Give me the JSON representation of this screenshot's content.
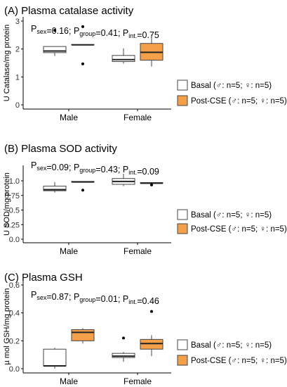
{
  "chart_data": [
    {
      "type": "boxplot",
      "title": "(A) Plasma catalase activity",
      "ylabel": "U Catalase/mg protein",
      "ylim": [
        0,
        3
      ],
      "yticks": [
        0,
        1,
        2,
        3
      ],
      "categories": [
        "Male",
        "Female"
      ],
      "stats": {
        "p_sex": "0.16",
        "p_group": "0.41",
        "p_int": "0.75"
      },
      "series": [
        {
          "name": "Basal",
          "color": "#ffffff",
          "boxes": [
            {
              "category": "Male",
              "whisker_low": 1.75,
              "q1": 1.87,
              "median": 1.93,
              "q3": 2.09,
              "whisker_high": 2.1,
              "outliers": [
                2.67
              ]
            },
            {
              "category": "Female",
              "whisker_low": 1.48,
              "q1": 1.55,
              "median": 1.62,
              "q3": 1.77,
              "whisker_high": 2.02,
              "outliers": []
            }
          ]
        },
        {
          "name": "Post-CSE",
          "color": "#f4a04a",
          "boxes": [
            {
              "category": "Male",
              "whisker_low": 2.15,
              "q1": 2.15,
              "median": 2.15,
              "q3": 2.16,
              "whisker_high": 2.16,
              "outliers": [
                2.8,
                1.47
              ]
            },
            {
              "category": "Female",
              "whisker_low": 1.37,
              "q1": 1.6,
              "median": 1.88,
              "q3": 2.2,
              "whisker_high": 2.52,
              "outliers": []
            }
          ]
        }
      ]
    },
    {
      "type": "boxplot",
      "title": "(B) Plasma SOD activity",
      "ylabel": "U SOD/mg protein",
      "ylim": [
        0,
        1.25
      ],
      "yticks": [
        0.0,
        0.25,
        0.5,
        0.75,
        1.0
      ],
      "categories": [
        "Male",
        "Female"
      ],
      "stats": {
        "p_sex": "0.09",
        "p_group": "0.43",
        "p_int": "0.09"
      },
      "series": [
        {
          "name": "Basal",
          "color": "#ffffff",
          "boxes": [
            {
              "category": "Male",
              "whisker_low": 0.8,
              "q1": 0.83,
              "median": 0.85,
              "q3": 0.91,
              "whisker_high": 0.98,
              "outliers": []
            },
            {
              "category": "Female",
              "whisker_low": 0.91,
              "q1": 0.94,
              "median": 0.99,
              "q3": 1.04,
              "whisker_high": 1.12,
              "outliers": []
            }
          ]
        },
        {
          "name": "Post-CSE",
          "color": "#f4a04a",
          "boxes": [
            {
              "category": "Male",
              "whisker_low": 0.98,
              "q1": 0.98,
              "median": 0.98,
              "q3": 0.99,
              "whisker_high": 0.99,
              "outliers": [
                0.84
              ]
            },
            {
              "category": "Female",
              "whisker_low": 0.96,
              "q1": 0.96,
              "median": 0.96,
              "q3": 0.97,
              "whisker_high": 0.97,
              "outliers": [
                0.93
              ]
            }
          ]
        }
      ]
    },
    {
      "type": "boxplot",
      "title": "(C) Plasma GSH",
      "ylabel": "µ mol GSH/mg protein",
      "ylim": [
        0,
        0.62
      ],
      "yticks": [
        0.0,
        0.2,
        0.4,
        0.6
      ],
      "categories": [
        "Male",
        "Female"
      ],
      "stats": {
        "p_sex": "0.87",
        "p_group": "0.01",
        "p_int": "0.46"
      },
      "series": [
        {
          "name": "Basal",
          "color": "#ffffff",
          "boxes": [
            {
              "category": "Male",
              "whisker_low": 0.0,
              "q1": 0.02,
              "median": 0.02,
              "q3": 0.14,
              "whisker_high": 0.15,
              "outliers": []
            },
            {
              "category": "Female",
              "whisker_low": 0.05,
              "q1": 0.08,
              "median": 0.09,
              "q3": 0.11,
              "whisker_high": 0.12,
              "outliers": [
                0.22
              ]
            }
          ]
        },
        {
          "name": "Post-CSE",
          "color": "#f4a04a",
          "boxes": [
            {
              "category": "Male",
              "whisker_low": 0.18,
              "q1": 0.2,
              "median": 0.26,
              "q3": 0.28,
              "whisker_high": 0.29,
              "outliers": []
            },
            {
              "category": "Female",
              "whisker_low": 0.09,
              "q1": 0.14,
              "median": 0.18,
              "q3": 0.21,
              "whisker_high": 0.24,
              "outliers": [
                0.41
              ]
            }
          ]
        }
      ]
    }
  ],
  "legend": {
    "basal_label": "Basal (♂: n=5; ♀: n=5)",
    "post_label": "Post-CSE (♂: n=5; ♀: n=5)"
  },
  "stat_labels": {
    "prefix": "P",
    "sex": "sex",
    "group": "group",
    "int": "int."
  }
}
